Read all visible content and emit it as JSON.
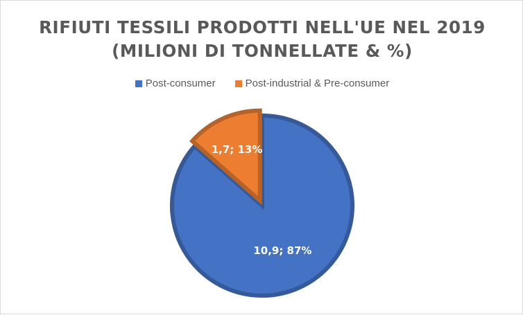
{
  "chart_data": {
    "type": "pie",
    "title_lines": [
      "RIFIUTI TESSILI PRODOTTI NELL'UE NEL 2019",
      "(MILIONI DI TONNELLATE & %)"
    ],
    "categories": [
      "Post-consumer",
      "Post-industrial & Pre-consumer"
    ],
    "values": [
      10.9,
      1.7
    ],
    "percentages": [
      87,
      13
    ],
    "data_labels": [
      "10,9; 87%",
      "1,7; 13%"
    ],
    "colors": [
      "#4472C4",
      "#ED7D31"
    ],
    "legend_position": "top"
  }
}
